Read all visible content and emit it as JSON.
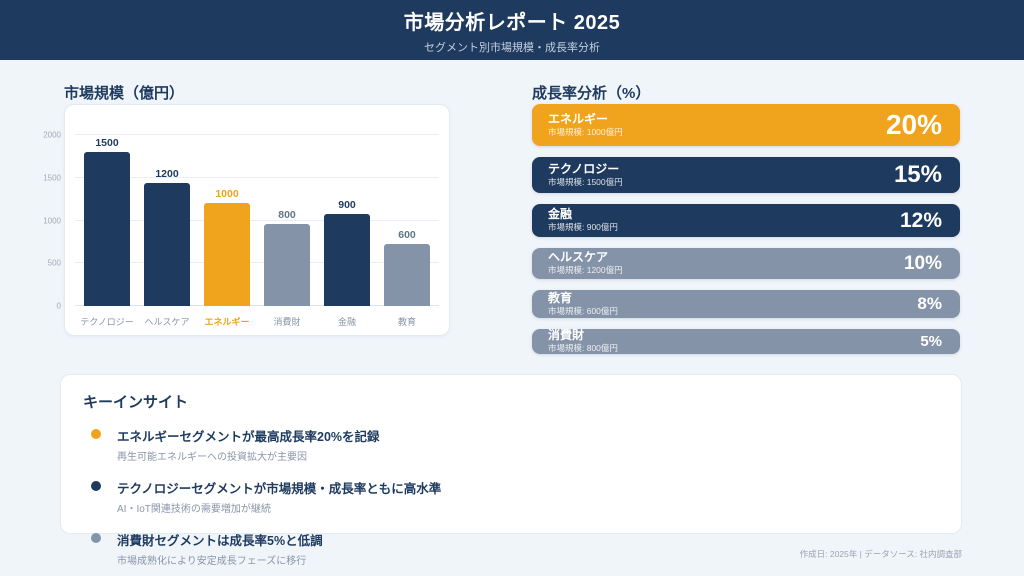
{
  "header": {
    "title": "市場分析レポート 2025",
    "subtitle": "セグメント別市場規模・成長率分析"
  },
  "market_chart": {
    "title": "市場規模（億円）",
    "y_ticks": [
      "0",
      "500",
      "1000",
      "1500",
      "2000"
    ],
    "bars": [
      {
        "label": "テクノロジー",
        "value": 1500,
        "value_label": "1500",
        "color": "navy"
      },
      {
        "label": "ヘルスケア",
        "value": 1200,
        "value_label": "1200",
        "color": "navy"
      },
      {
        "label": "エネルギー",
        "value": 1000,
        "value_label": "1000",
        "color": "orange"
      },
      {
        "label": "消費財",
        "value": 800,
        "value_label": "800",
        "color": "gray"
      },
      {
        "label": "金融",
        "value": 900,
        "value_label": "900",
        "color": "navy"
      },
      {
        "label": "教育",
        "value": 600,
        "value_label": "600",
        "color": "gray"
      }
    ]
  },
  "growth_panel": {
    "title": "成長率分析（%）",
    "cards": [
      {
        "label": "エネルギー",
        "sub": "市場規模: 1000億円",
        "percent": "20%",
        "rate": 20,
        "color": "orange"
      },
      {
        "label": "テクノロジー",
        "sub": "市場規模: 1500億円",
        "percent": "15%",
        "rate": 15,
        "color": "navy"
      },
      {
        "label": "金融",
        "sub": "市場規模: 900億円",
        "percent": "12%",
        "rate": 12,
        "color": "navy"
      },
      {
        "label": "ヘルスケア",
        "sub": "市場規模: 1200億円",
        "percent": "10%",
        "rate": 10,
        "color": "gray"
      },
      {
        "label": "教育",
        "sub": "市場規模: 600億円",
        "percent": "8%",
        "rate": 8,
        "color": "gray"
      },
      {
        "label": "消費財",
        "sub": "市場規模: 800億円",
        "percent": "5%",
        "rate": 5,
        "color": "gray"
      }
    ]
  },
  "insights": {
    "title": "キーインサイト",
    "items": [
      {
        "headline": "エネルギーセグメントが最高成長率20%を記録",
        "detail": "再生可能エネルギーへの投資拡大が主要因",
        "color": "orange"
      },
      {
        "headline": "テクノロジーセグメントが市場規模・成長率ともに高水準",
        "detail": "AI・IoT関連技術の需要増加が継続",
        "color": "navy"
      },
      {
        "headline": "消費財セグメントは成長率5%と低調",
        "detail": "市場成熟化により安定成長フェーズに移行",
        "color": "gray"
      }
    ]
  },
  "footer": {
    "text": "作成日: 2025年 | データソース: 社内調査部"
  },
  "colors": {
    "navy": "#1e3a5f",
    "orange": "#f0a31c",
    "gray": "#8593a9",
    "background": "#f0f5fa",
    "card_border": "#e3eaf2",
    "muted_text": "#8a95a8"
  },
  "chart_data": [
    {
      "type": "bar",
      "title": "市場規模（億円）",
      "categories": [
        "テクノロジー",
        "ヘルスケア",
        "エネルギー",
        "消費財",
        "金融",
        "教育"
      ],
      "values": [
        1500,
        1200,
        1000,
        800,
        900,
        600
      ],
      "xlabel": "",
      "ylabel": "億円",
      "ylim": [
        0,
        2000
      ],
      "y_ticks": [
        0,
        500,
        1000,
        1500,
        2000
      ],
      "grid": true,
      "highlight_category": "エネルギー",
      "bar_colors": [
        "#1e3a5f",
        "#1e3a5f",
        "#f0a31c",
        "#8593a9",
        "#1e3a5f",
        "#8593a9"
      ]
    },
    {
      "type": "bar",
      "orientation": "horizontal",
      "title": "成長率分析（%）",
      "categories": [
        "エネルギー",
        "テクノロジー",
        "金融",
        "ヘルスケア",
        "教育",
        "消費財"
      ],
      "values": [
        20,
        15,
        12,
        10,
        8,
        5
      ],
      "annotations": [
        "市場規模: 1000億円",
        "市場規模: 1500億円",
        "市場規模: 900億円",
        "市場規模: 1200億円",
        "市場規模: 600億円",
        "市場規模: 800億円"
      ],
      "bar_colors": [
        "#f0a31c",
        "#1e3a5f",
        "#1e3a5f",
        "#8593a9",
        "#8593a9",
        "#8593a9"
      ]
    }
  ]
}
